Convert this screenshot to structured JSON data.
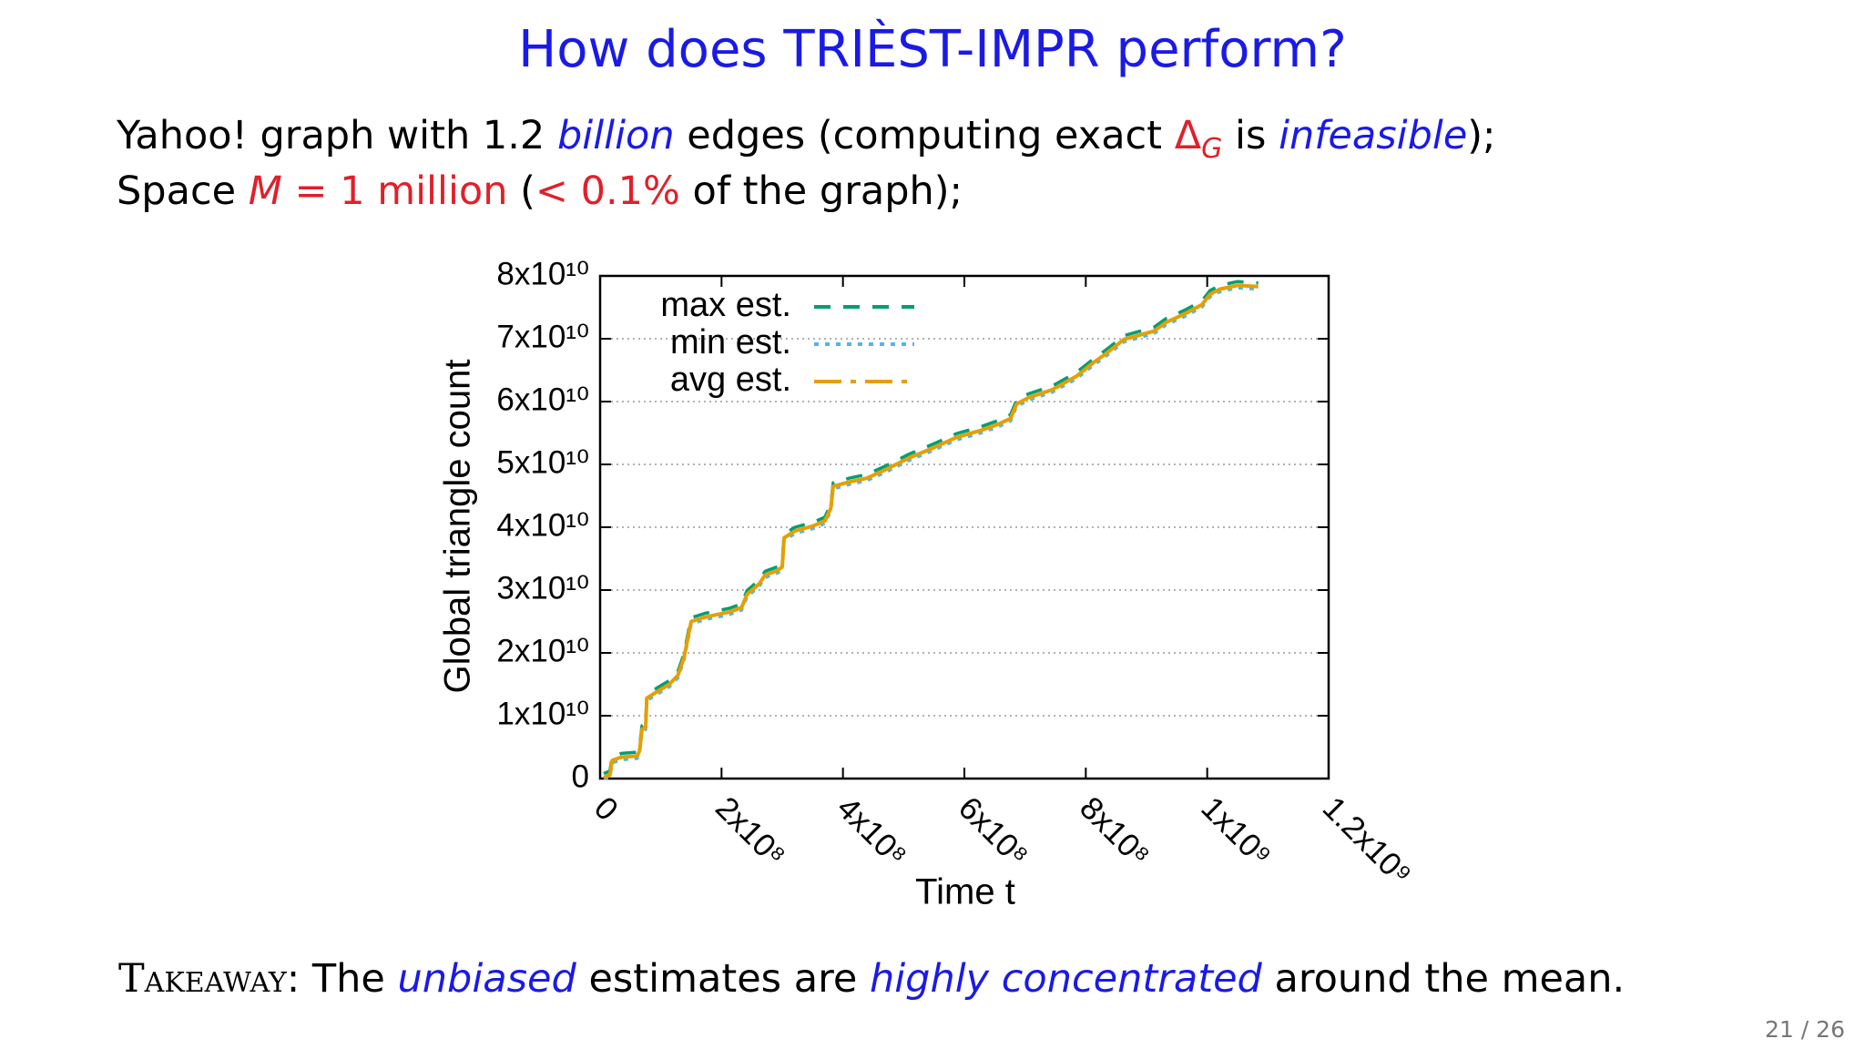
{
  "slide": {
    "title": "How does TRIÈST-IMPR perform?",
    "line1": [
      "Yahoo! graph with 1.2 ",
      "billion",
      " edges (computing exact ",
      "Δ",
      "G",
      " is ",
      "infeasible",
      ");"
    ],
    "line2": [
      "Space ",
      "M",
      " = 1 million",
      " (",
      "< 0.1%",
      " of the graph);"
    ],
    "takeaway": [
      "Takeaway",
      ": The ",
      "unbiased",
      " estimates are ",
      "highly concentrated",
      " around the mean."
    ],
    "page": "21 / 26"
  },
  "chart_data": {
    "type": "line",
    "xlabel": "Time t",
    "ylabel": "Global triangle count",
    "xlim": [
      0,
      1200000000.0
    ],
    "ylim": [
      0,
      80000000000.0
    ],
    "xticks": [
      0,
      {
        "value": 200000000.0,
        "label": "2x10⁸"
      },
      {
        "value": 400000000.0,
        "label": "4x10⁸"
      },
      {
        "value": 600000000.0,
        "label": "6x10⁸"
      },
      {
        "value": 800000000.0,
        "label": "8x10⁸"
      },
      {
        "value": 1000000000.0,
        "label": "1x10⁹"
      },
      {
        "value": 1200000000.0,
        "label": "1.2x10⁹"
      }
    ],
    "yticks": [
      0,
      {
        "value": 10000000000.0,
        "label": "1x10¹⁰"
      },
      {
        "value": 20000000000.0,
        "label": "2x10¹⁰"
      },
      {
        "value": 30000000000.0,
        "label": "3x10¹⁰"
      },
      {
        "value": 40000000000.0,
        "label": "4x10¹⁰"
      },
      {
        "value": 50000000000.0,
        "label": "5x10¹⁰"
      },
      {
        "value": 60000000000.0,
        "label": "6x10¹⁰"
      },
      {
        "value": 70000000000.0,
        "label": "7x10¹⁰"
      },
      {
        "value": 80000000000.0,
        "label": "8x10¹⁰"
      }
    ],
    "grid": true,
    "legend": "top-left",
    "x": [
      6000000.0,
      16000000.0,
      20000000.0,
      35000000.0,
      61000000.0,
      65000000.0,
      69000000.0,
      75000000.0,
      77000000.0,
      95000000.0,
      114000000.0,
      128000000.0,
      138000000.0,
      144000000.0,
      150000000.0,
      173000000.0,
      213000000.0,
      233000000.0,
      242000000.0,
      262000000.0,
      272000000.0,
      292000000.0,
      300000000.0,
      303000000.0,
      321000000.0,
      351000000.0,
      370000000.0,
      380000000.0,
      384000000.0,
      410000000.0,
      439000000.0,
      469000000.0,
      508000000.0,
      548000000.0,
      587000000.0,
      627000000.0,
      656000000.0,
      676000000.0,
      686000000.0,
      705000000.0,
      745000000.0,
      784000000.0,
      814000000.0,
      833000000.0,
      863000000.0,
      893000000.0,
      912000000.0,
      932000000.0,
      962000000.0,
      991000000.0,
      1005000000.0,
      1021000000.0,
      1050000000.0,
      1084000000.0
    ],
    "series": [
      {
        "name": "max est.",
        "color": "#009e73",
        "style": "dashed",
        "values": [
          800000000.0,
          1200000000.0,
          3500000000.0,
          4000000000.0,
          4200000000.0,
          5000000000.0,
          8400000000.0,
          8800000000.0,
          13400000000.0,
          14500000000.0,
          15600000000.0,
          17000000000.0,
          19800000000.0,
          22700000000.0,
          25600000000.0,
          26300000000.0,
          27100000000.0,
          27800000000.0,
          29900000000.0,
          31600000000.0,
          33000000000.0,
          33700000000.0,
          34300000000.0,
          38900000000.0,
          40000000000.0,
          40800000000.0,
          41600000000.0,
          43600000000.0,
          47100000000.0,
          47800000000.0,
          48400000000.0,
          49700000000.0,
          51600000000.0,
          53200000000.0,
          54900000000.0,
          56000000000.0,
          57000000000.0,
          57900000000.0,
          60200000000.0,
          61200000000.0,
          62500000000.0,
          64600000000.0,
          66900000000.0,
          68200000000.0,
          70500000000.0,
          71300000000.0,
          71800000000.0,
          73200000000.0,
          74500000000.0,
          76000000000.0,
          77700000000.0,
          78500000000.0,
          79100000000.0,
          78900000000.0
        ]
      },
      {
        "name": "min est.",
        "color": "#56b4e9",
        "style": "dotted",
        "values": [
          0.0,
          200000000.0,
          2500000000.0,
          3000000000.0,
          3200000000.0,
          4000000000.0,
          7400000000.0,
          7800000000.0,
          12400000000.0,
          13500000000.0,
          14600000000.0,
          16000000000.0,
          18800000000.0,
          21700000000.0,
          24600000000.0,
          25300000000.0,
          26100000000.0,
          26800000000.0,
          28900000000.0,
          30600000000.0,
          32000000000.0,
          32700000000.0,
          33300000000.0,
          37900000000.0,
          39000000000.0,
          39800000000.0,
          40600000000.0,
          42600000000.0,
          46100000000.0,
          46800000000.0,
          47400000000.0,
          48700000000.0,
          50600000000.0,
          52200000000.0,
          53900000000.0,
          55000000000.0,
          56000000000.0,
          56900000000.0,
          59200000000.0,
          60200000000.0,
          61500000000.0,
          63600000000.0,
          65900000000.0,
          67200000000.0,
          69500000000.0,
          70300000000.0,
          70800000000.0,
          72200000000.0,
          73500000000.0,
          75000000000.0,
          76700000000.0,
          77500000000.0,
          78100000000.0,
          77900000000.0
        ]
      },
      {
        "name": "avg est.",
        "color": "#e69f00",
        "style": "dashdot",
        "values": [
          190000000.0,
          570000000.0,
          2900000000.0,
          3400000000.0,
          3600000000.0,
          4400000000.0,
          7800000000.0,
          8200000000.0,
          12800000000.0,
          13900000000.0,
          15000000000.0,
          16400000000.0,
          19200000000.0,
          22100000000.0,
          25000000000.0,
          25700000000.0,
          26500000000.0,
          27200000000.0,
          29300000000.0,
          31000000000.0,
          32400000000.0,
          33100000000.0,
          33700000000.0,
          38300000000.0,
          39400000000.0,
          40200000000.0,
          41000000000.0,
          43000000000.0,
          46500000000.0,
          47200000000.0,
          47800000000.0,
          49100000000.0,
          51000000000.0,
          52600000000.0,
          54300000000.0,
          55400000000.0,
          56400000000.0,
          57300000000.0,
          59600000000.0,
          60600000000.0,
          61900000000.0,
          64000000000.0,
          66300000000.0,
          67600000000.0,
          69900000000.0,
          70700000000.0,
          71200000000.0,
          72600000000.0,
          73900000000.0,
          75400000000.0,
          77100000000.0,
          77900000000.0,
          78500000000.0,
          78300000000.0
        ]
      }
    ]
  }
}
